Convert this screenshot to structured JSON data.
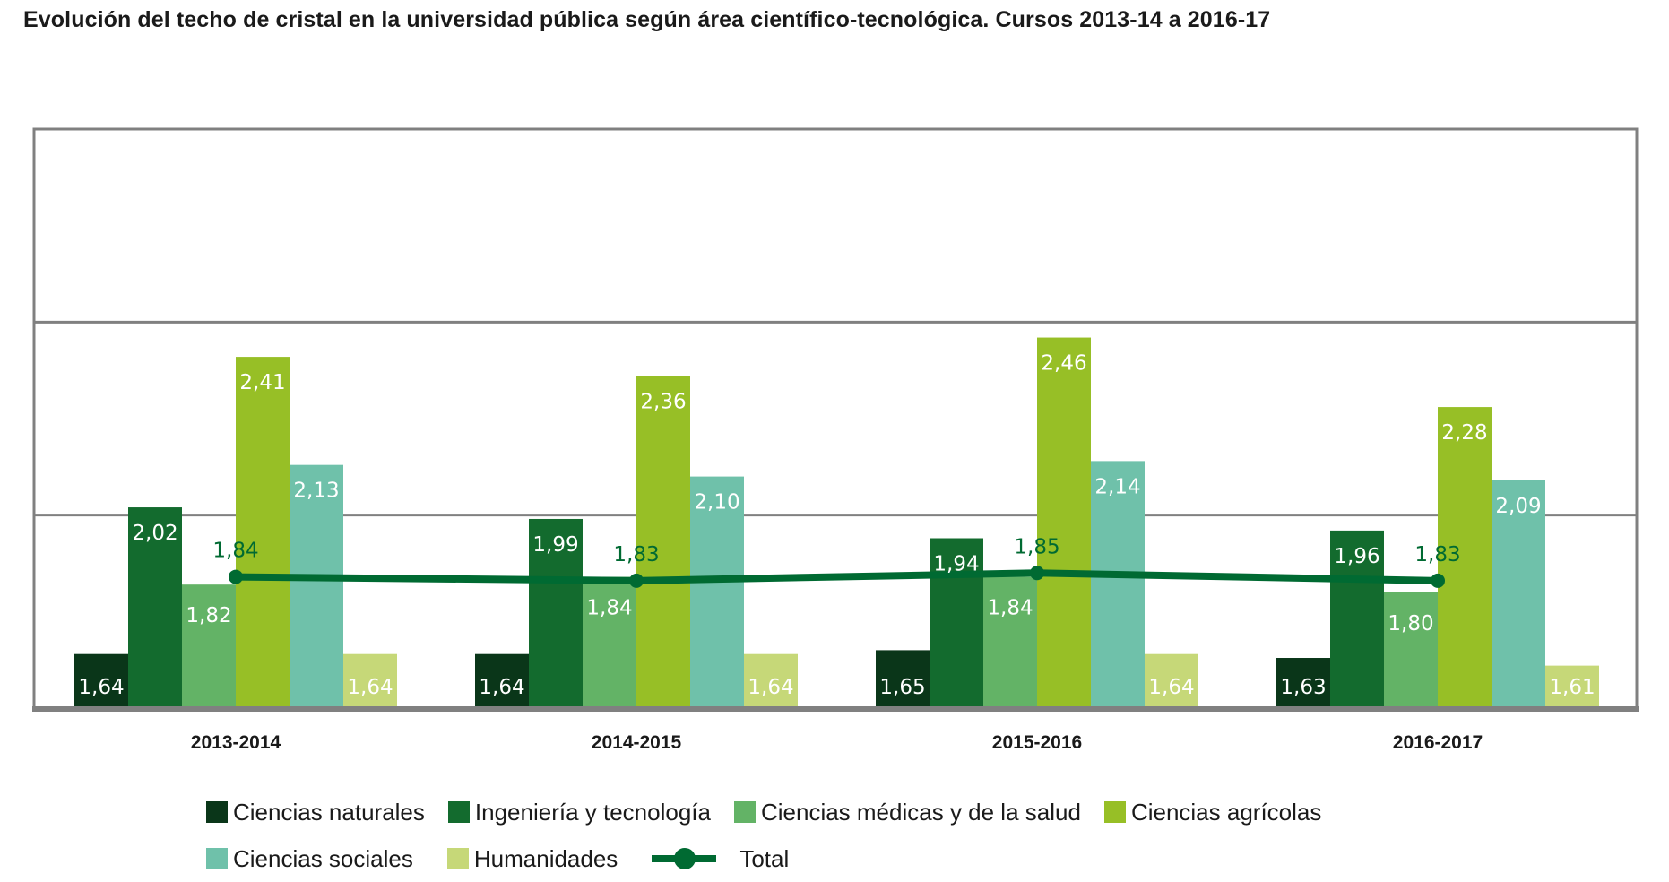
{
  "chart_data": {
    "type": "bar",
    "title": "Evolución del techo de cristal en la universidad pública según área científico-tecnológica. Cursos 2013-14 a 2016-17",
    "xlabel": "",
    "ylabel": "",
    "ylim": [
      1.5,
      3.0
    ],
    "gridlines": [
      2.0,
      2.5
    ],
    "grid": true,
    "legend_position": "bottom",
    "categories": [
      "2013-2014",
      "2014-2015",
      "2015-2016",
      "2016-2017"
    ],
    "series": [
      {
        "name": "Ciencias naturales",
        "color": "#0a3619",
        "values": [
          1.64,
          1.64,
          1.65,
          1.63
        ],
        "labels": [
          "1,64",
          "1,64",
          "1,65",
          "1,63"
        ]
      },
      {
        "name": "Ingeniería y tecnología",
        "color": "#136b2e",
        "values": [
          2.02,
          1.99,
          1.94,
          1.96
        ],
        "labels": [
          "2,02",
          "1,99",
          "1,94",
          "1,96"
        ]
      },
      {
        "name": "Ciencias médicas y de la salud",
        "color": "#63b366",
        "values": [
          1.82,
          1.84,
          1.84,
          1.8
        ],
        "labels": [
          "1,82",
          "1,84",
          "1,84",
          "1,80"
        ]
      },
      {
        "name": "Ciencias agrícolas",
        "color": "#97bf26",
        "values": [
          2.41,
          2.36,
          2.46,
          2.28
        ],
        "labels": [
          "2,41",
          "2,36",
          "2,46",
          "2,28"
        ]
      },
      {
        "name": "Ciencias sociales",
        "color": "#6fc1aa",
        "values": [
          2.13,
          2.1,
          2.14,
          2.09
        ],
        "labels": [
          "2,13",
          "2,10",
          "2,14",
          "2,09"
        ]
      },
      {
        "name": "Humanidades",
        "color": "#c6d878",
        "values": [
          1.64,
          1.64,
          1.64,
          1.61
        ],
        "labels": [
          "1,64",
          "1,64",
          "1,64",
          "1,61"
        ]
      }
    ],
    "line_series": {
      "name": "Total",
      "type": "line",
      "color": "#006a32",
      "values": [
        1.84,
        1.83,
        1.85,
        1.83
      ],
      "labels": [
        "1,84",
        "1,83",
        "1,85",
        "1,83"
      ]
    },
    "axis_color": "#808080"
  },
  "legend": {
    "row1": [
      "Ciencias naturales",
      "Ingeniería y tecnología",
      "Ciencias médicas y de la salud",
      "Ciencias agrícolas"
    ],
    "row2": [
      "Ciencias sociales",
      "Humanidades"
    ],
    "total": "Total"
  }
}
